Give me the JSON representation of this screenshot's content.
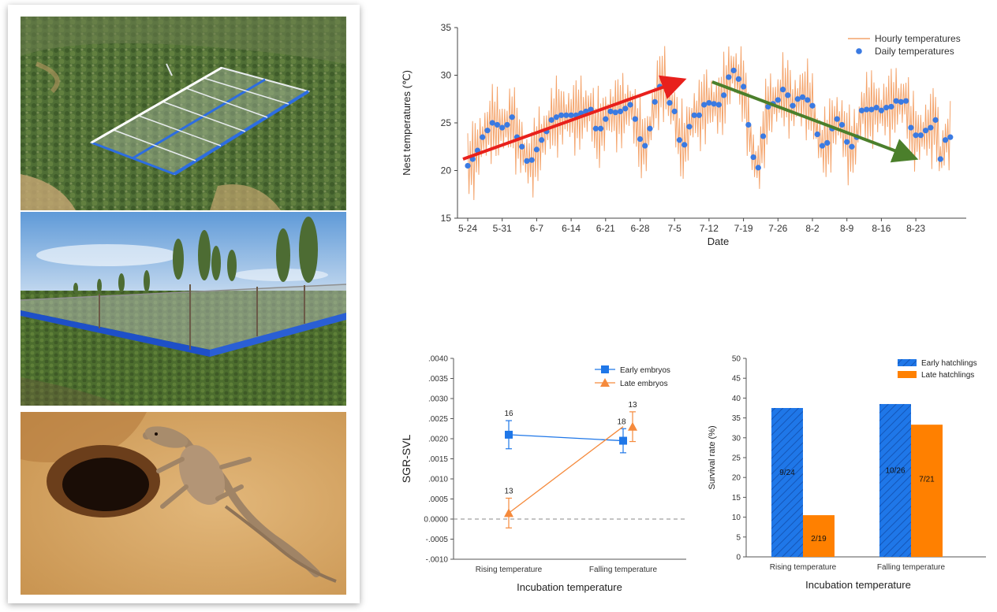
{
  "chart_data": [
    {
      "type": "line",
      "ylabel": "Nest temperatures (℃)",
      "xlabel": "Date",
      "ylim": [
        15,
        35
      ],
      "yticks": [
        15,
        20,
        25,
        30,
        35
      ],
      "xticks": [
        "5-24",
        "5-31",
        "6-7",
        "6-14",
        "6-21",
        "6-28",
        "7-5",
        "7-12",
        "7-19",
        "7-26",
        "8-2",
        "8-9",
        "8-16",
        "8-23"
      ],
      "legend": [
        "Hourly temperatures",
        "Daily temperatures"
      ],
      "series": [
        {
          "name": "Daily temperatures",
          "values": [
            20.5,
            21.2,
            22.1,
            23.5,
            24.2,
            25.0,
            24.8,
            24.5,
            24.8,
            25.6,
            23.5,
            22.5,
            21.0,
            21.1,
            22.2,
            23.2,
            24.1,
            25.3,
            25.6,
            25.8,
            25.8,
            25.8,
            25.8,
            26.0,
            26.2,
            26.4,
            24.4,
            24.4,
            25.4,
            26.2,
            26.1,
            26.2,
            26.5,
            26.9,
            25.4,
            23.3,
            22.6,
            24.4,
            27.2,
            28.8,
            29.3,
            27.1,
            26.2,
            23.2,
            22.7,
            24.6,
            25.8,
            25.8,
            26.9,
            27.1,
            27.0,
            26.9,
            27.9,
            29.8,
            30.5,
            29.6,
            28.8,
            24.8,
            21.4,
            20.3,
            23.6,
            26.7,
            27.0,
            27.4,
            28.5,
            27.9,
            26.8,
            27.5,
            27.7,
            27.4,
            26.8,
            23.8,
            22.6,
            22.9,
            24.4,
            25.4,
            24.8,
            23.0,
            22.5,
            23.5,
            26.3,
            26.4,
            26.4,
            26.6,
            26.3,
            26.6,
            26.7,
            27.3,
            27.2,
            27.3,
            24.5,
            23.7,
            23.7,
            24.2,
            24.5,
            25.3,
            21.2,
            23.2,
            23.5
          ]
        }
      ],
      "annotations": [
        "rising-trend-arrow",
        "falling-trend-arrow"
      ]
    },
    {
      "type": "line",
      "ylabel": "SGR-SVL",
      "xlabel": "Incubation temperature",
      "ylim": [
        -0.001,
        0.004
      ],
      "yticks": [
        ".0040",
        ".0035",
        ".0030",
        ".0025",
        ".0020",
        ".0015",
        ".0010",
        ".0005",
        "0.0000",
        "-.0005",
        "-.0010"
      ],
      "categories": [
        "Rising temperature",
        "Falling temperature"
      ],
      "legend": [
        "Early embryos",
        "Late embryos"
      ],
      "series": [
        {
          "name": "Early embryos",
          "values": [
            0.0021,
            0.00195
          ],
          "errors": [
            0.00035,
            0.0003
          ],
          "n": [
            "16",
            "18"
          ],
          "color": "#1f77e8"
        },
        {
          "name": "Late embryos",
          "values": [
            0.00015,
            0.0023
          ],
          "errors": [
            0.00037,
            0.00037
          ],
          "n": [
            "13",
            "13"
          ],
          "color": "#f58a3c"
        }
      ]
    },
    {
      "type": "bar",
      "ylabel": "Survival rate (%)",
      "xlabel": "Incubation temperature",
      "ylim": [
        0,
        50
      ],
      "yticks": [
        "0",
        "5",
        "10",
        "15",
        "20",
        "25",
        "30",
        "35",
        "40",
        "45",
        "50"
      ],
      "categories": [
        "Rising temperature",
        "Falling temperature"
      ],
      "legend": [
        "Early hatchlings",
        "Late hatchlings"
      ],
      "series": [
        {
          "name": "Early hatchlings",
          "values": [
            37.5,
            38.5
          ],
          "labels": [
            "9/24",
            "10/26"
          ],
          "color": "#1f77e8"
        },
        {
          "name": "Late hatchlings",
          "values": [
            10.5,
            33.3
          ],
          "labels": [
            "2/19",
            "7/21"
          ],
          "color": "#ff8000"
        }
      ]
    }
  ],
  "colors": {
    "hourly": "#f4a46c",
    "daily": "#3a7ae2",
    "rise_arrow": "#e8201c",
    "fall_arrow": "#4b7f2b",
    "early": "#1f77e8",
    "late": "#ff8000",
    "late_line": "#f58a3c"
  }
}
